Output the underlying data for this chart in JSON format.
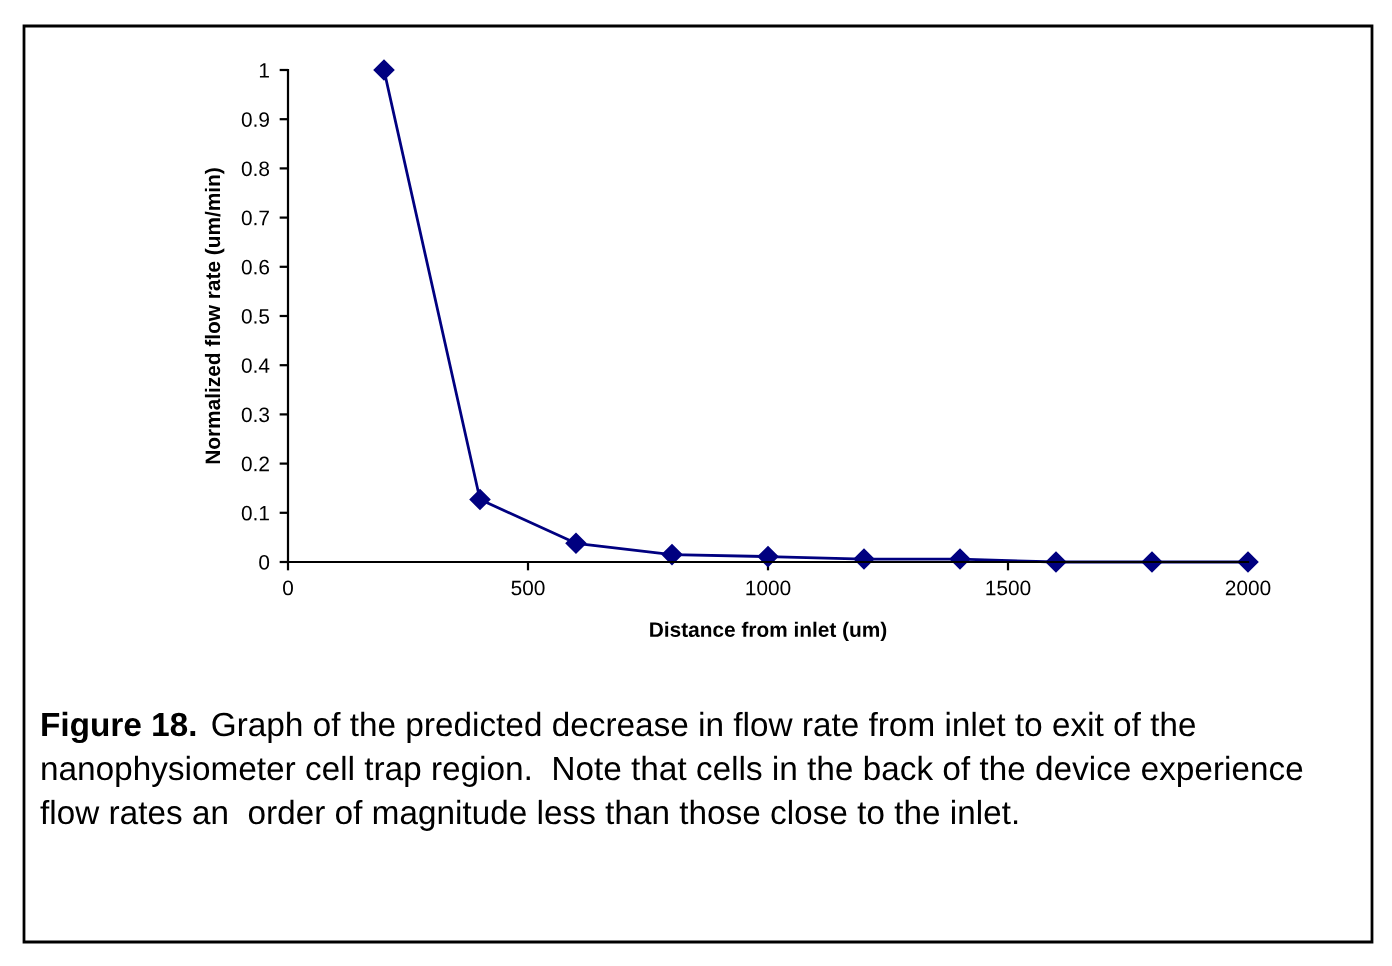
{
  "chart_data": {
    "type": "line",
    "xlabel": "Distance from inlet (um)",
    "ylabel": "Normalized flow rate (um/min)",
    "x": [
      200,
      400,
      600,
      800,
      1000,
      1200,
      1400,
      1600,
      1800,
      2000
    ],
    "series": [
      {
        "color": "#000080",
        "values": [
          1,
          0.127,
          0.038,
          0.015,
          0.011,
          0.006,
          0.006,
          0,
          0,
          0
        ]
      }
    ],
    "marker": "diamond",
    "line_style": "solid",
    "grid": false,
    "xlim": [
      0,
      2000
    ],
    "xticks": [
      0,
      500,
      1000,
      1500,
      2000
    ],
    "ylim": [
      0,
      1
    ],
    "yticks": [
      0,
      0.1,
      0.2,
      0.3,
      0.4,
      0.5,
      0.6,
      0.7,
      0.8,
      0.9,
      1
    ],
    "annotations": [
      "Figure 18.",
      "Graph of the predicted decrease in flow rate from inlet to exit of the nanophysiometer cell trap region.  Note that cells in the back of the device experience flow rates an  order of magnitude less than those close to the inlet."
    ]
  }
}
